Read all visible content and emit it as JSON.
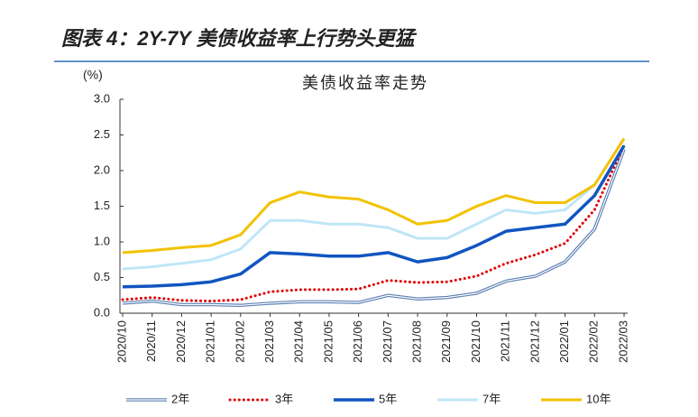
{
  "header": {
    "title": "图表 4：2Y-7Y 美债收益率上行势头更猛"
  },
  "chart_data": {
    "type": "line",
    "title": "美债收益率走势",
    "y_label": "(%)",
    "x": [
      "2020/10",
      "2020/11",
      "2020/12",
      "2021/01",
      "2021/02",
      "2021/03",
      "2021/04",
      "2021/05",
      "2021/06",
      "2021/07",
      "2021/08",
      "2021/09",
      "2021/10",
      "2021/11",
      "2021/12",
      "2022/01",
      "2022/02",
      "2022/03"
    ],
    "series": [
      {
        "name": "2年",
        "color": "#5b7fb3",
        "line_style": "double",
        "values": [
          0.14,
          0.17,
          0.12,
          0.12,
          0.11,
          0.14,
          0.16,
          0.16,
          0.15,
          0.25,
          0.2,
          0.22,
          0.28,
          0.45,
          0.52,
          0.72,
          1.18,
          2.3
        ]
      },
      {
        "name": "3年",
        "color": "#e00000",
        "line_style": "dotted",
        "values": [
          0.19,
          0.22,
          0.18,
          0.17,
          0.19,
          0.3,
          0.33,
          0.33,
          0.34,
          0.46,
          0.43,
          0.44,
          0.52,
          0.7,
          0.82,
          0.98,
          1.45,
          2.35
        ]
      },
      {
        "name": "5年",
        "color": "#1155c0",
        "line_style": "solid",
        "values": [
          0.37,
          0.38,
          0.4,
          0.44,
          0.55,
          0.85,
          0.83,
          0.8,
          0.8,
          0.85,
          0.72,
          0.78,
          0.95,
          1.15,
          1.2,
          1.25,
          1.65,
          2.35
        ]
      },
      {
        "name": "7年",
        "color": "#bfe6f7",
        "line_style": "solid",
        "values": [
          0.62,
          0.65,
          0.7,
          0.75,
          0.9,
          1.3,
          1.3,
          1.25,
          1.25,
          1.2,
          1.05,
          1.05,
          1.25,
          1.45,
          1.4,
          1.45,
          1.8,
          2.45
        ]
      },
      {
        "name": "10年",
        "color": "#f2c200",
        "line_style": "solid",
        "values": [
          0.85,
          0.88,
          0.92,
          0.95,
          1.1,
          1.55,
          1.7,
          1.63,
          1.6,
          1.45,
          1.25,
          1.3,
          1.5,
          1.65,
          1.55,
          1.55,
          1.8,
          2.45
        ]
      }
    ],
    "ylim": [
      0,
      3
    ],
    "yticks": [
      {
        "value": 0,
        "label": "0.0"
      },
      0.5,
      {
        "value": 1,
        "label": "1.0"
      },
      1.5,
      {
        "value": 2,
        "label": "2.0"
      },
      2.5,
      {
        "value": 3,
        "label": "3.0"
      }
    ],
    "grid": false,
    "legend": "bottom"
  }
}
